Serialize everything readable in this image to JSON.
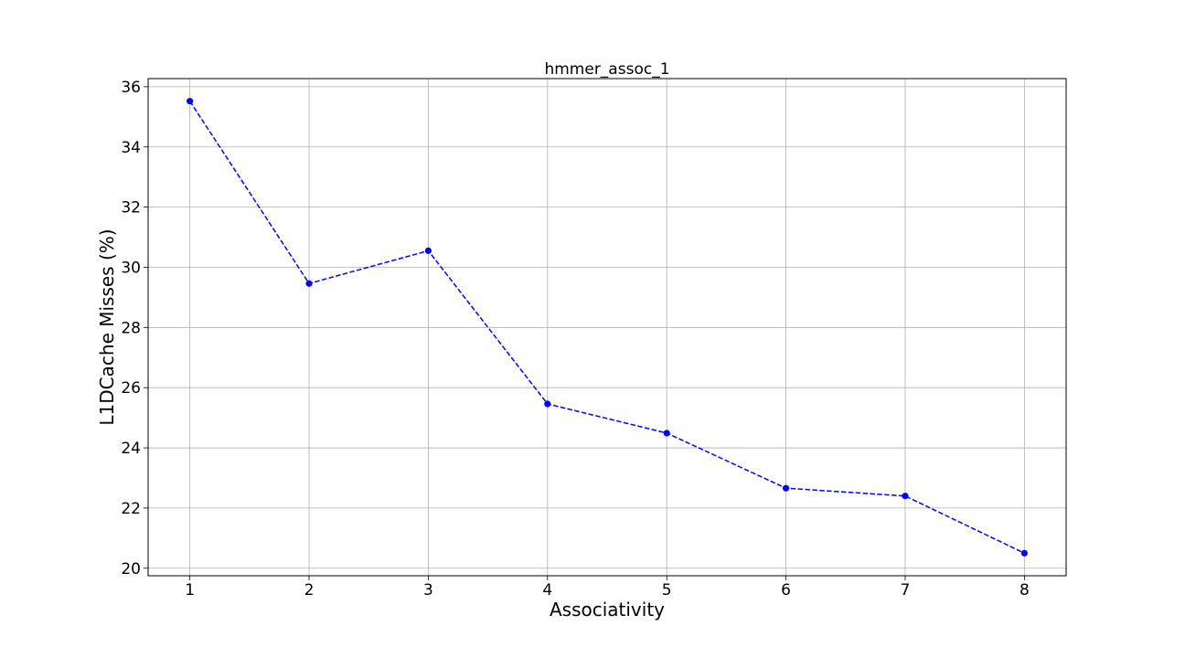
{
  "chart_data": {
    "type": "line",
    "title": "hmmer_assoc_1",
    "xlabel": "Associativity",
    "ylabel": "L1DCache Misses (%)",
    "x": [
      1,
      2,
      3,
      4,
      5,
      6,
      7,
      8
    ],
    "series": [
      {
        "values": [
          35.52,
          29.46,
          30.55,
          25.46,
          24.49,
          22.66,
          22.4,
          20.5
        ],
        "color": "#0000ff",
        "line_style": "dashed",
        "marker": "circle"
      }
    ],
    "xticks": [
      1,
      2,
      3,
      4,
      5,
      6,
      7,
      8
    ],
    "yticks": [
      20,
      22,
      24,
      26,
      28,
      30,
      32,
      34,
      36
    ],
    "xlim": [
      0.65,
      8.35
    ],
    "ylim": [
      19.75,
      36.27
    ],
    "grid": true,
    "legend": false
  }
}
